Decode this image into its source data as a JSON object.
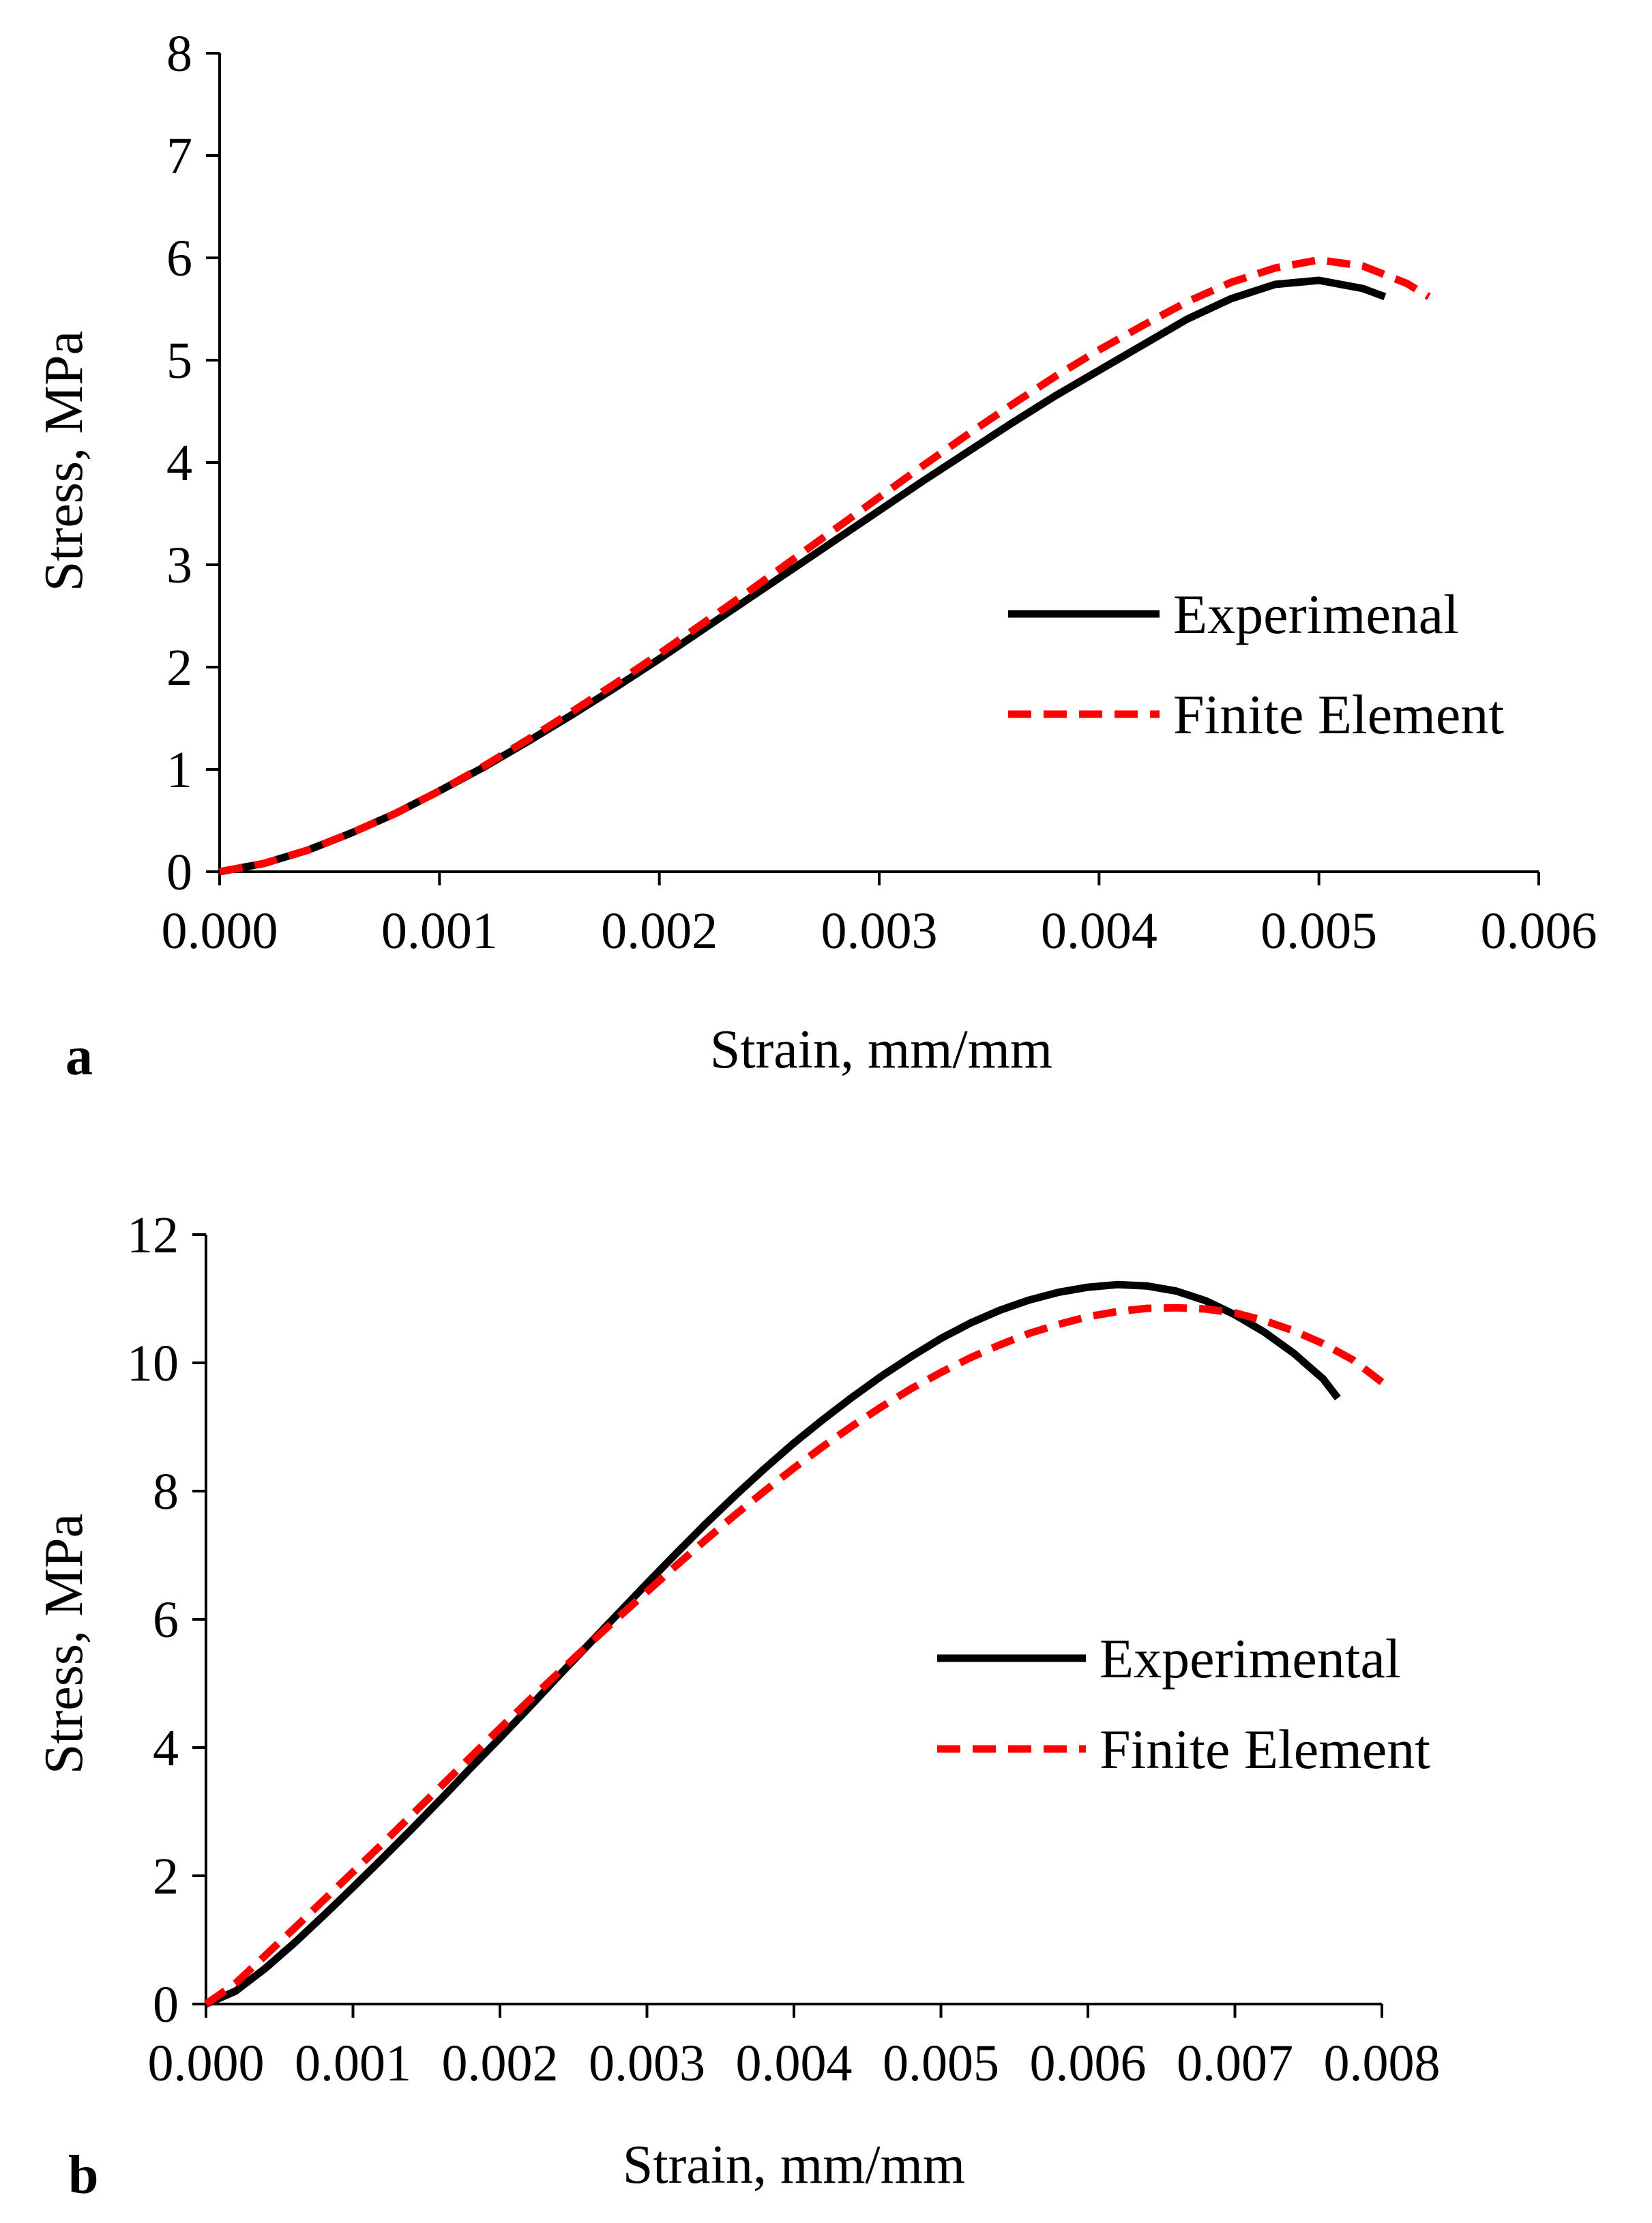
{
  "figure": {
    "panels": [
      {
        "letter": "a"
      },
      {
        "letter": "b"
      }
    ]
  },
  "chart_data": [
    {
      "type": "line",
      "panel_label": "a",
      "xlabel": "Strain, mm/mm",
      "ylabel": "Stress, MPa",
      "xlim": [
        0,
        0.006
      ],
      "ylim": [
        0,
        8
      ],
      "x_ticks": [
        0,
        0.001,
        0.002,
        0.003,
        0.004,
        0.005,
        0.006
      ],
      "x_tick_labels": [
        "0.000",
        "0.001",
        "0.002",
        "0.003",
        "0.004",
        "0.005",
        "0.006"
      ],
      "y_ticks": [
        0,
        1,
        2,
        3,
        4,
        5,
        6,
        7,
        8
      ],
      "y_tick_labels": [
        "0",
        "1",
        "2",
        "3",
        "4",
        "5",
        "6",
        "7",
        "8"
      ],
      "grid": false,
      "legend_position": "right",
      "series": [
        {
          "name": "Experimenal",
          "color": "#000000",
          "style": "solid",
          "x": [
            0,
            0.0002,
            0.0004,
            0.0006,
            0.0008,
            0.001,
            0.0012,
            0.0014,
            0.0016,
            0.0018,
            0.002,
            0.0022,
            0.0024,
            0.0026,
            0.0028,
            0.003,
            0.0032,
            0.0034,
            0.0036,
            0.0038,
            0.004,
            0.0042,
            0.0044,
            0.0046,
            0.0048,
            0.005,
            0.0052,
            0.0053
          ],
          "y": [
            0,
            0.08,
            0.21,
            0.38,
            0.57,
            0.79,
            1.02,
            1.27,
            1.53,
            1.8,
            2.08,
            2.37,
            2.66,
            2.95,
            3.24,
            3.53,
            3.82,
            4.1,
            4.38,
            4.65,
            4.9,
            5.15,
            5.4,
            5.6,
            5.74,
            5.78,
            5.7,
            5.62
          ]
        },
        {
          "name": "Finite Element",
          "color": "#ff0000",
          "style": "dashed",
          "x": [
            0,
            0.0002,
            0.0004,
            0.0006,
            0.0008,
            0.001,
            0.0012,
            0.0014,
            0.0016,
            0.0018,
            0.002,
            0.0022,
            0.0024,
            0.0026,
            0.0028,
            0.003,
            0.0032,
            0.0034,
            0.0036,
            0.0038,
            0.004,
            0.0042,
            0.0044,
            0.0046,
            0.0048,
            0.005,
            0.0052,
            0.0054,
            0.0055
          ],
          "y": [
            0,
            0.08,
            0.21,
            0.38,
            0.57,
            0.79,
            1.03,
            1.29,
            1.56,
            1.84,
            2.13,
            2.43,
            2.73,
            3.04,
            3.35,
            3.66,
            3.97,
            4.27,
            4.56,
            4.84,
            5.1,
            5.34,
            5.57,
            5.76,
            5.9,
            5.98,
            5.92,
            5.75,
            5.62
          ]
        }
      ]
    },
    {
      "type": "line",
      "panel_label": "b",
      "xlabel": "Strain, mm/mm",
      "ylabel": "Stress, MPa",
      "xlim": [
        0,
        0.008
      ],
      "ylim": [
        0,
        12
      ],
      "x_ticks": [
        0,
        0.001,
        0.002,
        0.003,
        0.004,
        0.005,
        0.006,
        0.007,
        0.008
      ],
      "x_tick_labels": [
        "0.000",
        "0.001",
        "0.002",
        "0.003",
        "0.004",
        "0.005",
        "0.006",
        "0.007",
        "0.008"
      ],
      "y_ticks": [
        0,
        2,
        4,
        6,
        8,
        10,
        12
      ],
      "y_tick_labels": [
        "0",
        "2",
        "4",
        "6",
        "8",
        "10",
        "12"
      ],
      "grid": false,
      "legend_position": "right",
      "series": [
        {
          "name": "Experimental",
          "color": "#000000",
          "style": "solid",
          "x": [
            0,
            0.0002,
            0.0004,
            0.0006,
            0.0008,
            0.001,
            0.0012,
            0.0014,
            0.0016,
            0.0018,
            0.002,
            0.0022,
            0.0024,
            0.0026,
            0.0028,
            0.003,
            0.0032,
            0.0034,
            0.0036,
            0.0038,
            0.004,
            0.0042,
            0.0044,
            0.0046,
            0.0048,
            0.005,
            0.0052,
            0.0054,
            0.0056,
            0.0058,
            0.006,
            0.0062,
            0.0064,
            0.0066,
            0.0068,
            0.007,
            0.0072,
            0.0074,
            0.0076,
            0.0077
          ],
          "y": [
            0,
            0.2,
            0.55,
            0.95,
            1.38,
            1.82,
            2.27,
            2.73,
            3.2,
            3.68,
            4.15,
            4.63,
            5.12,
            5.6,
            6.08,
            6.56,
            7.03,
            7.49,
            7.93,
            8.35,
            8.75,
            9.12,
            9.47,
            9.8,
            10.1,
            10.38,
            10.62,
            10.82,
            10.98,
            11.1,
            11.18,
            11.22,
            11.2,
            11.12,
            10.97,
            10.75,
            10.48,
            10.15,
            9.75,
            9.45
          ]
        },
        {
          "name": "Finite Element",
          "color": "#ff0000",
          "style": "dashed",
          "x": [
            0,
            0.0002,
            0.0004,
            0.0006,
            0.0008,
            0.001,
            0.0012,
            0.0014,
            0.0016,
            0.0018,
            0.002,
            0.0022,
            0.0024,
            0.0026,
            0.0028,
            0.003,
            0.0032,
            0.0034,
            0.0036,
            0.0038,
            0.004,
            0.0042,
            0.0044,
            0.0046,
            0.0048,
            0.005,
            0.0052,
            0.0054,
            0.0056,
            0.0058,
            0.006,
            0.0062,
            0.0064,
            0.0066,
            0.0068,
            0.007,
            0.0072,
            0.0074,
            0.0076,
            0.0078,
            0.008
          ],
          "y": [
            0,
            0.32,
            0.75,
            1.18,
            1.62,
            2.06,
            2.5,
            2.95,
            3.4,
            3.85,
            4.3,
            4.74,
            5.17,
            5.6,
            6.02,
            6.43,
            6.84,
            7.24,
            7.63,
            8.0,
            8.36,
            8.7,
            9.02,
            9.32,
            9.6,
            9.85,
            10.08,
            10.28,
            10.46,
            10.6,
            10.72,
            10.8,
            10.85,
            10.86,
            10.84,
            10.78,
            10.66,
            10.5,
            10.3,
            10.05,
            9.7
          ]
        }
      ]
    }
  ]
}
